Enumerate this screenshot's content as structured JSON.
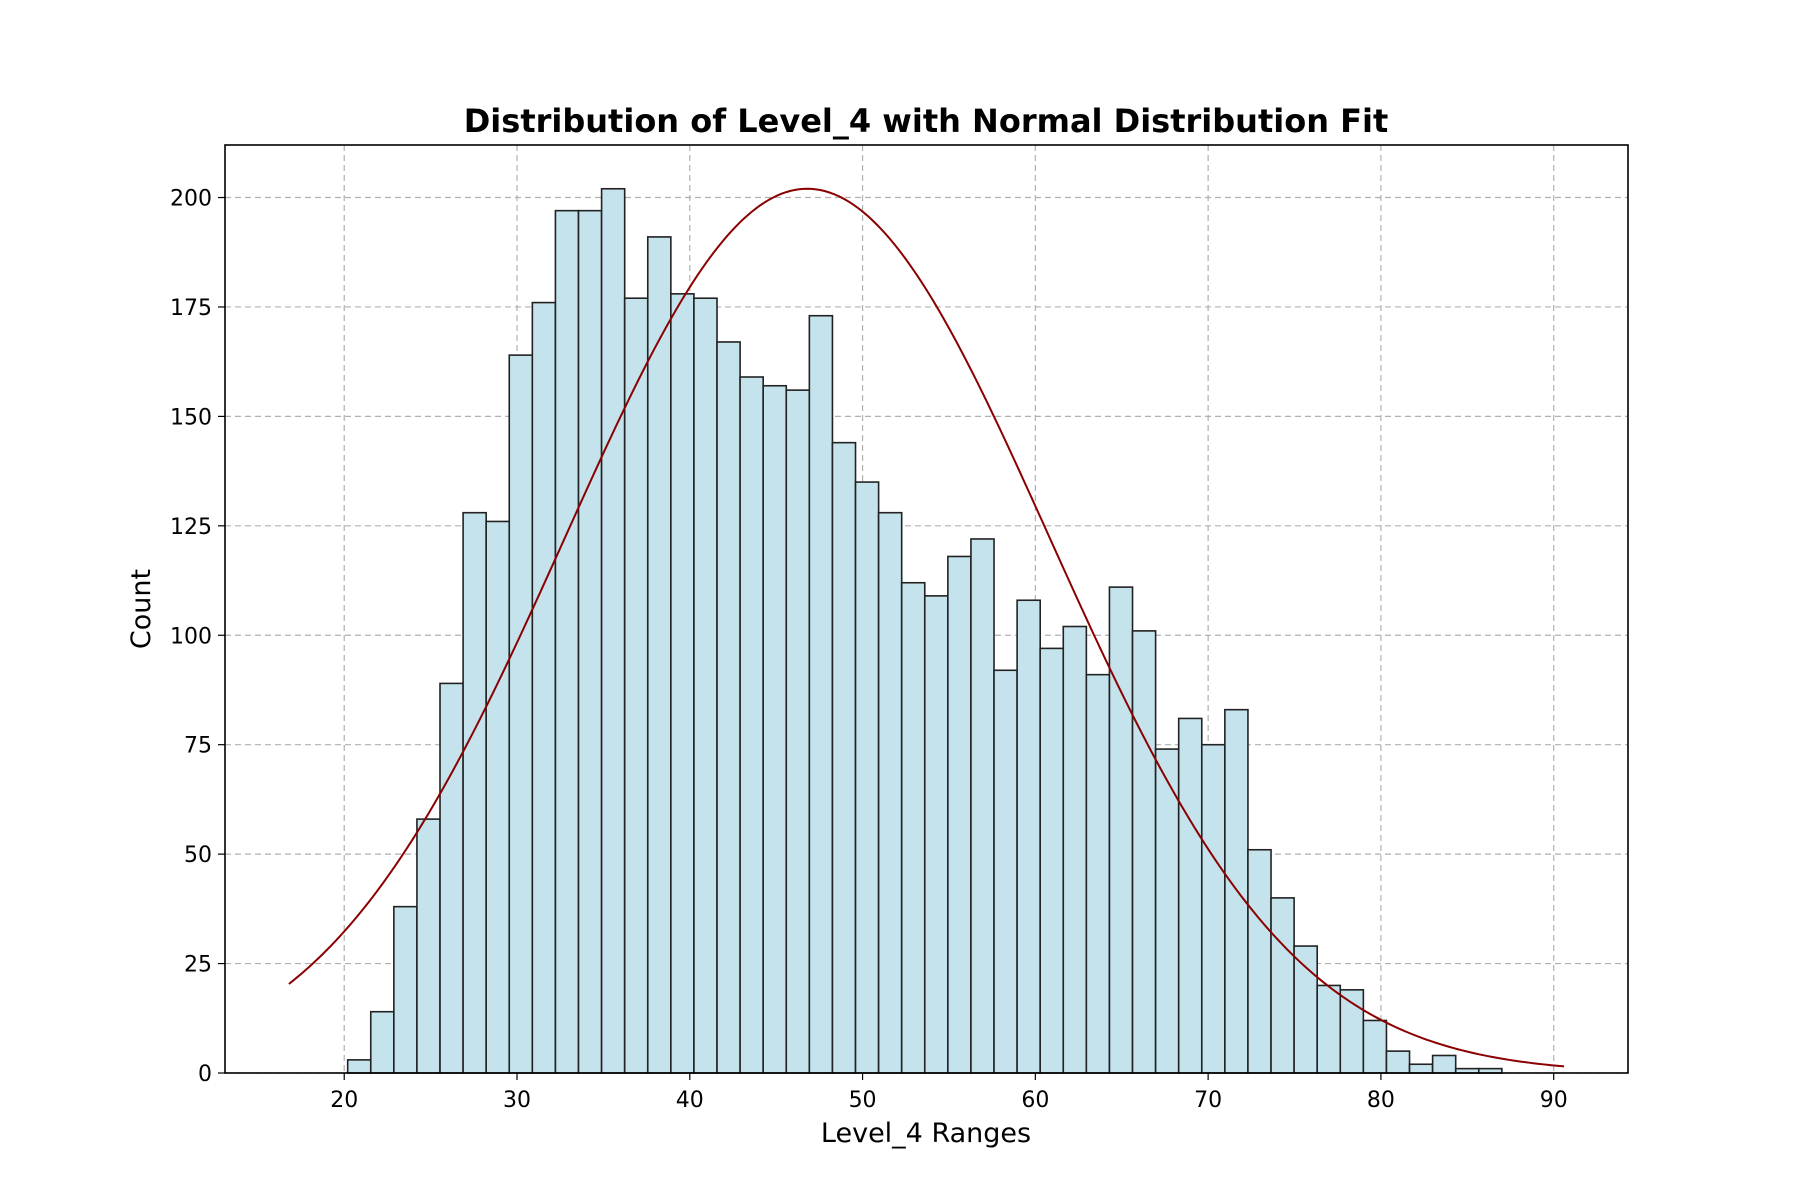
{
  "chart_data": {
    "type": "bar",
    "title": "Distribution of Level_4 with Normal Distribution Fit",
    "xlabel": "Level_4 Ranges",
    "ylabel": "Count",
    "xlim": [
      13.1,
      94.3
    ],
    "ylim": [
      0,
      212
    ],
    "x_ticks": [
      20,
      30,
      40,
      50,
      60,
      70,
      80,
      90
    ],
    "y_ticks": [
      0,
      25,
      50,
      75,
      100,
      125,
      150,
      175,
      200
    ],
    "grid": true,
    "bin_start": 20.2,
    "bin_width": 1.336,
    "values": [
      3,
      14,
      38,
      58,
      89,
      128,
      126,
      164,
      176,
      197,
      197,
      202,
      177,
      191,
      178,
      177,
      167,
      159,
      157,
      156,
      173,
      144,
      135,
      128,
      112,
      109,
      118,
      122,
      92,
      108,
      97,
      102,
      91,
      111,
      101,
      74,
      81,
      75,
      83,
      51,
      40,
      29,
      20,
      19,
      12,
      5,
      2,
      4,
      1,
      1
    ],
    "bar_color": "#c5e3ec",
    "bar_edge_color": "#222222",
    "fit_curve": {
      "type": "normal",
      "mean": 46.8,
      "std": 14.0,
      "peak": 202,
      "x_range": [
        16.8,
        90.6
      ],
      "color": "#8b0000"
    }
  }
}
